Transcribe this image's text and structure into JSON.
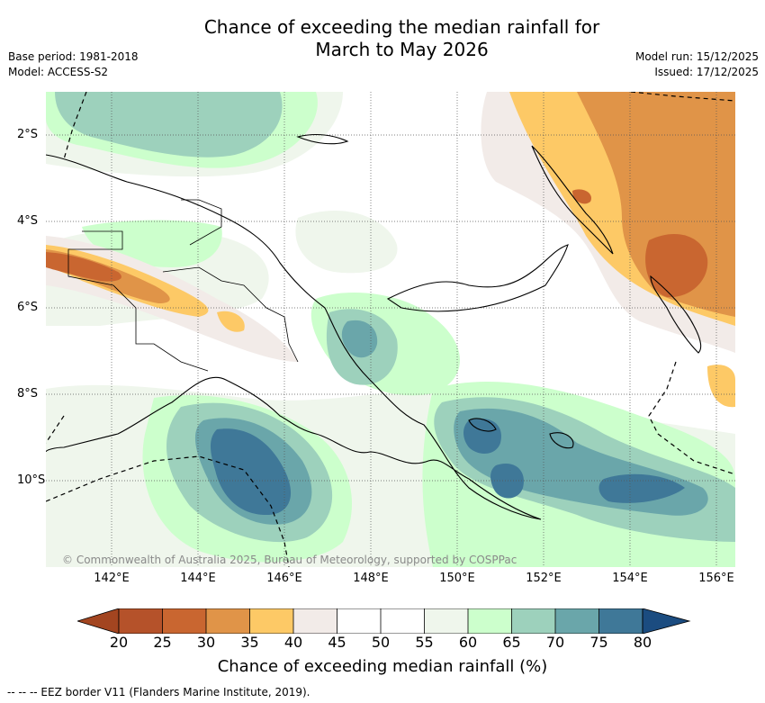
{
  "title": {
    "line1": "Chance of exceeding the median rainfall for",
    "line2": "March to May 2026"
  },
  "meta_left": {
    "base_period": "Base period: 1981-2018",
    "model": "Model: ACCESS-S2"
  },
  "meta_right": {
    "model_run": "Model run: 15/12/2025",
    "issued": "Issued: 17/12/2025"
  },
  "map": {
    "region": "Papua New Guinea",
    "copyright": "© Commonwealth of Australia 2025, Bureau of Meteorology, supported by COSPPac",
    "lat_labels": [
      "2°S",
      "4°S",
      "6°S",
      "8°S",
      "10°S"
    ],
    "lon_labels": [
      "142°E",
      "144°E",
      "146°E",
      "148°E",
      "150°E",
      "152°E",
      "154°E",
      "156°E"
    ]
  },
  "colorbar": {
    "label": "Chance of exceeding median rainfall (%)",
    "ticks": [
      "20",
      "25",
      "30",
      "35",
      "40",
      "45",
      "50",
      "55",
      "60",
      "65",
      "70",
      "75",
      "80"
    ],
    "colors": {
      "under": "#a34520",
      "b20_25": "#b5522a",
      "b25_30": "#c96630",
      "b30_35": "#e09448",
      "b35_40": "#fdc966",
      "b40_45": "#f2ebe8",
      "b45_50": "#ffffff",
      "b50_55": "#ffffff",
      "b55_60": "#eff6ec",
      "b60_65": "#ccffcc",
      "b65_70": "#9dd1bc",
      "b70_75": "#6aa6aa",
      "b75_80": "#3f7898",
      "over": "#1b4c80"
    }
  },
  "eez_legend": "-- -- -- EEZ border V11 (Flanders Marine Institute, 2019)."
}
